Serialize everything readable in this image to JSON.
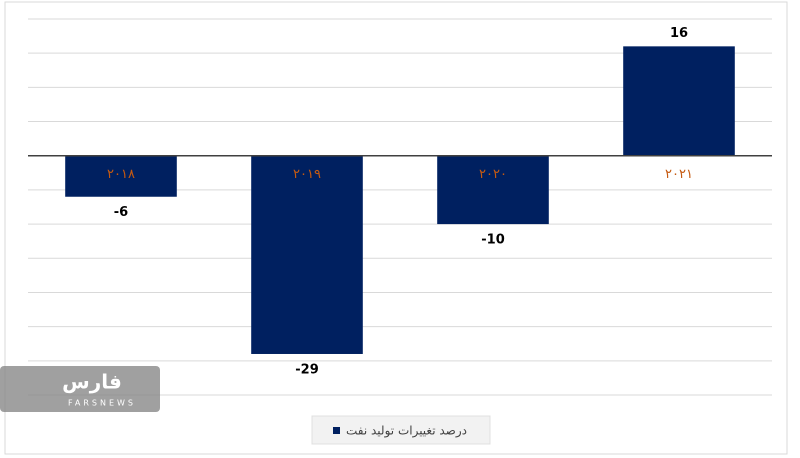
{
  "chart_data": {
    "type": "bar",
    "categories": [
      "۲۰۱۸",
      "۲۰۱۹",
      "۲۰۲۰",
      "۲۰۲۱"
    ],
    "series": [
      {
        "name": "درصد تغییرات تولید نفت",
        "color": "#002060",
        "values": [
          -6,
          -29,
          -10,
          16
        ]
      }
    ],
    "ylim": [
      -35,
      20
    ],
    "yticks": [
      -35,
      -30,
      -25,
      -20,
      -15,
      -10,
      -5,
      0,
      5,
      10,
      15,
      20
    ],
    "grid": true,
    "category_label_color": "#c55a11",
    "legend": "bottom",
    "watermark": {
      "text": "فارس",
      "subtext": "FARSNEWS"
    }
  }
}
